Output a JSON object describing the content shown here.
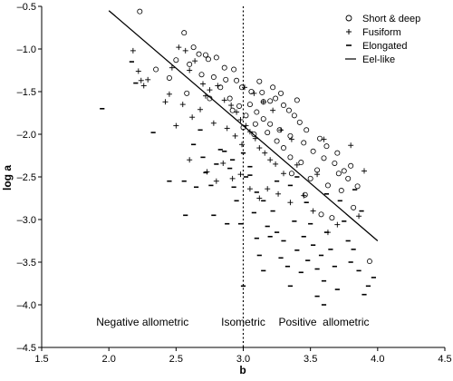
{
  "chart_data": {
    "type": "scatter",
    "xlabel": "b",
    "ylabel": "log a",
    "xlim": [
      1.5,
      4.5
    ],
    "ylim": [
      -4.5,
      -0.5
    ],
    "xticks": [
      1.5,
      2.0,
      2.5,
      3.0,
      3.5,
      4.0,
      4.5
    ],
    "yticks": [
      -0.5,
      -1.0,
      -1.5,
      -2.0,
      -2.5,
      -3.0,
      -3.5,
      -4.0,
      -4.5
    ],
    "xtick_labels": [
      "1.5",
      "2.0",
      "2.5",
      "3.0",
      "3.5",
      "4.0",
      "4.5"
    ],
    "ytick_labels": [
      "–0.5",
      "–1.0",
      "–1.5",
      "–2.0",
      "–2.5",
      "–3.0",
      "–3.5",
      "–4.0",
      "–4.5"
    ],
    "grid": false,
    "legend_position": "top-right",
    "legend": [
      {
        "label": "Short & deep",
        "marker": "circle"
      },
      {
        "label": "Fusiform",
        "marker": "plus"
      },
      {
        "label": "Elongated",
        "marker": "dash"
      },
      {
        "label": "Eel-like",
        "marker": "line"
      }
    ],
    "reference_line": {
      "x": 3.0,
      "style": "dotted"
    },
    "eel_like_line": {
      "x": [
        2.0,
        4.0
      ],
      "y": [
        -0.55,
        -3.25
      ]
    },
    "annotations": [
      {
        "text": "Negative allometric",
        "x": 2.25,
        "y": -4.2
      },
      {
        "text": "Isometric",
        "x": 3.0,
        "y": -4.2
      },
      {
        "text": "Positive  allometric",
        "x": 3.6,
        "y": -4.2
      }
    ],
    "series": [
      {
        "name": "Short & deep",
        "marker": "circle",
        "points": [
          [
            2.23,
            -0.56
          ],
          [
            2.56,
            -0.81
          ],
          [
            2.5,
            -1.13
          ],
          [
            2.63,
            -0.98
          ],
          [
            2.67,
            -1.06
          ],
          [
            2.72,
            -1.07
          ],
          [
            2.74,
            -1.12
          ],
          [
            2.8,
            -1.1
          ],
          [
            2.86,
            -1.22
          ],
          [
            2.93,
            -1.24
          ],
          [
            2.69,
            -1.3
          ],
          [
            2.78,
            -1.33
          ],
          [
            2.87,
            -1.36
          ],
          [
            2.95,
            -1.37
          ],
          [
            2.99,
            -1.45
          ],
          [
            3.06,
            -1.5
          ],
          [
            3.14,
            -1.51
          ],
          [
            3.2,
            -1.61
          ],
          [
            3.24,
            -1.58
          ],
          [
            3.3,
            -1.66
          ],
          [
            3.34,
            -1.72
          ],
          [
            3.38,
            -1.78
          ],
          [
            3.42,
            -1.86
          ],
          [
            3.05,
            -1.65
          ],
          [
            3.1,
            -1.74
          ],
          [
            3.15,
            -1.82
          ],
          [
            3.2,
            -1.88
          ],
          [
            3.27,
            -1.95
          ],
          [
            3.35,
            -2.02
          ],
          [
            3.45,
            -2.1
          ],
          [
            3.52,
            -2.2
          ],
          [
            3.6,
            -2.28
          ],
          [
            3.68,
            -2.34
          ],
          [
            3.75,
            -2.43
          ],
          [
            3.8,
            -2.37
          ],
          [
            3.71,
            -2.46
          ],
          [
            3.35,
            -2.27
          ],
          [
            3.43,
            -2.33
          ],
          [
            3.55,
            -2.42
          ],
          [
            3.63,
            -2.6
          ],
          [
            3.73,
            -2.66
          ],
          [
            3.85,
            -2.61
          ],
          [
            3.94,
            -3.49
          ],
          [
            3.82,
            -2.86
          ],
          [
            3.58,
            -2.94
          ],
          [
            3.5,
            -2.52
          ],
          [
            2.9,
            -1.58
          ],
          [
            2.97,
            -1.67
          ],
          [
            3.02,
            -1.78
          ],
          [
            3.09,
            -1.88
          ],
          [
            3.18,
            -1.98
          ],
          [
            3.25,
            -2.08
          ],
          [
            3.3,
            -2.16
          ],
          [
            2.35,
            -1.24
          ],
          [
            2.6,
            -1.18
          ],
          [
            2.45,
            -1.34
          ],
          [
            2.83,
            -1.45
          ],
          [
            3.12,
            -1.38
          ],
          [
            3.22,
            -1.45
          ],
          [
            3.28,
            -1.52
          ],
          [
            3.4,
            -1.6
          ],
          [
            3.47,
            -1.95
          ],
          [
            3.57,
            -2.05
          ],
          [
            3.62,
            -2.14
          ],
          [
            3.7,
            -2.22
          ],
          [
            3.15,
            -1.62
          ],
          [
            2.75,
            -1.58
          ],
          [
            2.92,
            -1.72
          ],
          [
            3.0,
            -1.92
          ],
          [
            3.08,
            -2.0
          ],
          [
            3.36,
            -2.46
          ],
          [
            3.46,
            -2.71
          ],
          [
            3.66,
            -2.98
          ],
          [
            3.78,
            -2.52
          ],
          [
            2.58,
            -1.52
          ]
        ]
      },
      {
        "name": "Fusiform",
        "marker": "plus",
        "points": [
          [
            2.18,
            -1.02
          ],
          [
            2.22,
            -1.26
          ],
          [
            2.24,
            -1.37
          ],
          [
            2.26,
            -1.43
          ],
          [
            2.29,
            -1.36
          ],
          [
            2.45,
            -1.53
          ],
          [
            2.47,
            -1.22
          ],
          [
            2.52,
            -0.98
          ],
          [
            2.57,
            -1.02
          ],
          [
            2.6,
            -1.25
          ],
          [
            2.64,
            -1.14
          ],
          [
            2.7,
            -1.41
          ],
          [
            2.75,
            -1.48
          ],
          [
            2.81,
            -1.43
          ],
          [
            2.72,
            -1.55
          ],
          [
            2.86,
            -1.6
          ],
          [
            2.91,
            -1.66
          ],
          [
            2.95,
            -1.74
          ],
          [
            2.98,
            -1.83
          ],
          [
            3.02,
            -1.9
          ],
          [
            3.05,
            -1.97
          ],
          [
            3.09,
            -2.05
          ],
          [
            3.12,
            -2.16
          ],
          [
            3.16,
            -2.22
          ],
          [
            3.2,
            -2.3
          ],
          [
            3.24,
            -2.35
          ],
          [
            3.3,
            -2.46
          ],
          [
            2.88,
            -1.93
          ],
          [
            2.94,
            -2.02
          ],
          [
            2.99,
            -2.12
          ],
          [
            2.78,
            -1.87
          ],
          [
            2.68,
            -1.71
          ],
          [
            2.62,
            -1.8
          ],
          [
            2.55,
            -1.65
          ],
          [
            2.98,
            -2.47
          ],
          [
            2.92,
            -2.52
          ],
          [
            2.8,
            -2.55
          ],
          [
            3.05,
            -2.64
          ],
          [
            3.12,
            -2.75
          ],
          [
            3.18,
            -2.64
          ],
          [
            3.26,
            -2.7
          ],
          [
            3.35,
            -2.8
          ],
          [
            3.45,
            -2.72
          ],
          [
            3.52,
            -2.9
          ],
          [
            3.63,
            -3.15
          ],
          [
            3.7,
            -3.06
          ],
          [
            3.86,
            -2.96
          ],
          [
            3.8,
            -2.13
          ],
          [
            3.9,
            -2.43
          ],
          [
            3.6,
            -2.06
          ],
          [
            3.55,
            -2.47
          ],
          [
            3.4,
            -2.36
          ],
          [
            3.36,
            -2.06
          ],
          [
            3.28,
            -1.95
          ],
          [
            3.22,
            -1.72
          ],
          [
            3.15,
            -1.62
          ],
          [
            3.08,
            -1.52
          ],
          [
            3.01,
            -1.45
          ],
          [
            2.6,
            -2.3
          ],
          [
            2.73,
            -2.44
          ],
          [
            2.85,
            -2.34
          ],
          [
            2.5,
            -1.9
          ],
          [
            2.42,
            -1.62
          ]
        ]
      },
      {
        "name": "Elongated",
        "marker": "dash",
        "points": [
          [
            1.95,
            -1.7
          ],
          [
            2.17,
            -1.15
          ],
          [
            2.2,
            -1.4
          ],
          [
            2.33,
            -1.98
          ],
          [
            2.45,
            -2.55
          ],
          [
            2.56,
            -2.55
          ],
          [
            2.57,
            -2.95
          ],
          [
            2.63,
            -2.12
          ],
          [
            2.7,
            -2.27
          ],
          [
            2.72,
            -2.45
          ],
          [
            2.76,
            -2.6
          ],
          [
            2.83,
            -2.18
          ],
          [
            2.86,
            -2.2
          ],
          [
            2.9,
            -2.4
          ],
          [
            2.93,
            -2.62
          ],
          [
            2.95,
            -2.78
          ],
          [
            2.98,
            -3.05
          ],
          [
            3.0,
            -3.78
          ],
          [
            3.02,
            -2.5
          ],
          [
            3.05,
            -2.38
          ],
          [
            3.08,
            -2.92
          ],
          [
            3.1,
            -3.22
          ],
          [
            3.12,
            -3.42
          ],
          [
            3.15,
            -2.78
          ],
          [
            3.18,
            -3.08
          ],
          [
            3.2,
            -3.2
          ],
          [
            3.22,
            -2.9
          ],
          [
            3.25,
            -3.15
          ],
          [
            3.28,
            -3.45
          ],
          [
            3.3,
            -3.25
          ],
          [
            3.33,
            -3.55
          ],
          [
            3.35,
            -2.6
          ],
          [
            3.38,
            -3.02
          ],
          [
            3.4,
            -3.36
          ],
          [
            3.43,
            -3.62
          ],
          [
            3.45,
            -3.2
          ],
          [
            3.48,
            -3.48
          ],
          [
            3.5,
            -3.05
          ],
          [
            3.52,
            -3.3
          ],
          [
            3.55,
            -3.58
          ],
          [
            3.58,
            -3.42
          ],
          [
            3.6,
            -3.72
          ],
          [
            3.62,
            -3.15
          ],
          [
            3.65,
            -3.35
          ],
          [
            3.68,
            -3.55
          ],
          [
            3.7,
            -3.82
          ],
          [
            3.72,
            -2.78
          ],
          [
            3.75,
            -3.02
          ],
          [
            3.78,
            -3.25
          ],
          [
            3.8,
            -3.5
          ],
          [
            3.82,
            -3.35
          ],
          [
            3.86,
            -3.6
          ],
          [
            3.9,
            -3.88
          ],
          [
            3.93,
            -3.78
          ],
          [
            3.97,
            -3.68
          ],
          [
            3.83,
            -2.65
          ],
          [
            3.88,
            -2.9
          ],
          [
            3.4,
            -2.5
          ],
          [
            3.25,
            -2.55
          ],
          [
            2.65,
            -2.62
          ],
          [
            2.78,
            -2.95
          ],
          [
            2.88,
            -3.05
          ],
          [
            3.15,
            -3.6
          ],
          [
            3.35,
            -3.78
          ],
          [
            3.55,
            -3.9
          ],
          [
            3.6,
            -4.0
          ],
          [
            3.47,
            -2.8
          ],
          [
            3.62,
            -2.7
          ],
          [
            3.1,
            -2.68
          ],
          [
            2.8,
            -2.35
          ],
          [
            2.68,
            -1.95
          ],
          [
            2.92,
            -2.3
          ],
          [
            3.05,
            -2.48
          ],
          [
            3.0,
            -2.22
          ]
        ]
      }
    ]
  }
}
